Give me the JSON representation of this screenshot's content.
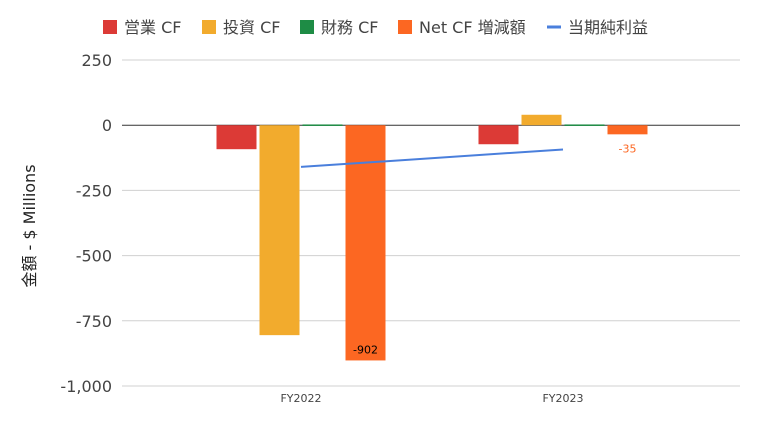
{
  "chart_data": {
    "type": "bar",
    "ylabel": "金額 - $ Millions",
    "categories": [
      "FY2022",
      "FY2023"
    ],
    "ylim": [
      -1000,
      250
    ],
    "yticks": [
      250,
      0,
      -250,
      -500,
      -750,
      -1000
    ],
    "ytick_labels": [
      "250",
      "0",
      "-250",
      "-500",
      "-750",
      "-1,000"
    ],
    "grid": true,
    "legend_position": "top",
    "series": [
      {
        "name": "営業 CF",
        "kind": "bar",
        "color": "#dc3a36",
        "values": [
          -92,
          -73
        ]
      },
      {
        "name": "投資 CF",
        "kind": "bar",
        "color": "#f2ab2d",
        "values": [
          -805,
          40
        ]
      },
      {
        "name": "財務 CF",
        "kind": "bar",
        "color": "#1e8c45",
        "values": [
          -5,
          0
        ]
      },
      {
        "name": "Net CF 増減額",
        "kind": "bar",
        "color": "#fc6722",
        "values": [
          -902,
          -35
        ],
        "data_labels": [
          "-902",
          "-35"
        ],
        "data_label_colors": [
          "#000000",
          "#fc6722"
        ]
      },
      {
        "name": "当期純利益",
        "kind": "line",
        "color": "#4a7fdc",
        "values": [
          -160,
          -93
        ]
      }
    ]
  }
}
